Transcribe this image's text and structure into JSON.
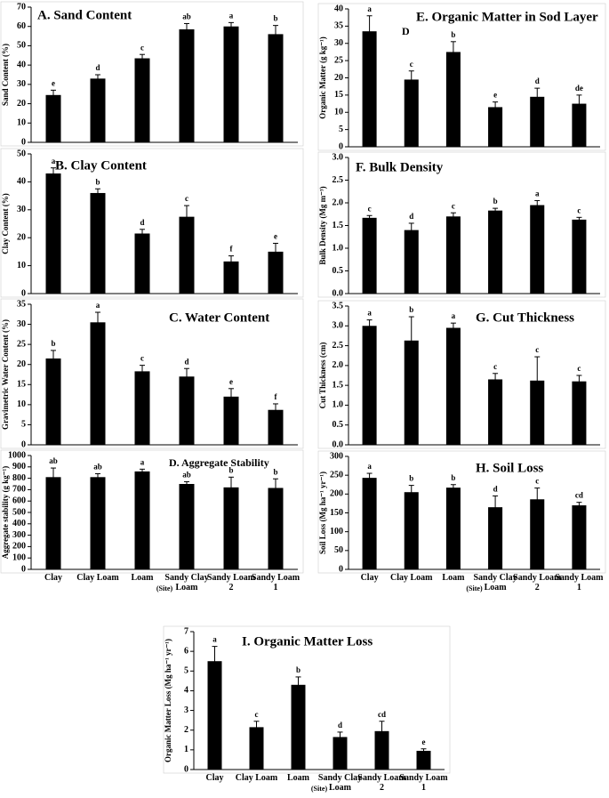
{
  "chart_data": [
    {
      "type": "bar",
      "title": "A.  Sand Content",
      "y_label": "Sand Content (%)",
      "color": "#000000",
      "values": [
        24.5,
        33,
        43.5,
        58.5,
        60,
        56
      ],
      "errors": [
        2.5,
        2,
        2,
        3,
        2,
        4.5
      ],
      "letters": [
        "e",
        "d",
        "c",
        "ab",
        "a",
        "b"
      ],
      "ylim": [
        0,
        70
      ],
      "yticks": [
        0,
        10,
        20,
        30,
        40,
        50,
        60,
        70
      ]
    },
    {
      "type": "bar",
      "title": "B.  Clay Content",
      "y_label": "Clay Content (%)",
      "color": "#000000",
      "values": [
        43,
        36,
        21.5,
        27.5,
        11.5,
        15
      ],
      "errors": [
        2,
        1.5,
        1.5,
        4,
        2,
        3
      ],
      "letters": [
        "a",
        "b",
        "d",
        "c",
        "f",
        "e"
      ],
      "ylim": [
        0,
        50
      ],
      "yticks": [
        0,
        10,
        20,
        30,
        40,
        50
      ]
    },
    {
      "type": "bar",
      "title": "C.  Water Content",
      "y_label": "Gravimetric Water Content (%)",
      "color": "#000000",
      "values": [
        21.5,
        30.5,
        18.3,
        17,
        12,
        8.7
      ],
      "errors": [
        2,
        2.5,
        1.5,
        2,
        2,
        1.5
      ],
      "letters": [
        "b",
        "a",
        "c",
        "d",
        "e",
        "f"
      ],
      "ylim": [
        0,
        35
      ],
      "yticks": [
        0,
        5,
        10,
        15,
        20,
        25,
        30,
        35
      ]
    },
    {
      "type": "bar",
      "title": "D. Aggregate Stability",
      "y_label": "Aggregate stability (g kg⁻¹)",
      "x_label": "(Site)",
      "color": "#000000",
      "categories": [
        "Clay",
        "Clay Loam",
        "Loam",
        "Sandy Clay Loam",
        "Sandy Loam 2",
        "Sandy Loam 1"
      ],
      "values": [
        810,
        810,
        860,
        750,
        720,
        715
      ],
      "errors": [
        80,
        30,
        20,
        20,
        90,
        80
      ],
      "letters": [
        "ab",
        "ab",
        "a",
        "ab",
        "b",
        "b"
      ],
      "ylim": [
        0,
        1000
      ],
      "yticks": [
        0,
        100,
        200,
        300,
        400,
        500,
        600,
        700,
        800,
        900,
        1000
      ]
    },
    {
      "type": "bar",
      "title": "E. Organic Matter in Sod Layer",
      "annotation": "D",
      "y_label": "Organic Matter (g kg⁻¹)",
      "color": "#000000",
      "values": [
        33.5,
        19.5,
        27.5,
        11.5,
        14.5,
        12.5
      ],
      "errors": [
        4.5,
        2.5,
        3,
        1.5,
        2.5,
        2.5
      ],
      "letters": [
        "a",
        "c",
        "b",
        "e",
        "d",
        "de"
      ],
      "ylim": [
        0,
        40
      ],
      "yticks": [
        0,
        5,
        10,
        15,
        20,
        25,
        30,
        35,
        40
      ]
    },
    {
      "type": "bar",
      "title": "F.  Bulk Density",
      "y_label": "Bulk Density (Mg m⁻³)",
      "color": "#000000",
      "values": [
        1.67,
        1.4,
        1.7,
        1.83,
        1.95,
        1.63
      ],
      "errors": [
        0.05,
        0.15,
        0.08,
        0.05,
        0.1,
        0.05
      ],
      "letters": [
        "c",
        "d",
        "c",
        "b",
        "a",
        "c"
      ],
      "ylim": [
        0,
        3
      ],
      "yticks": [
        {
          "value": 0,
          "label": "0.0"
        },
        0.5,
        {
          "value": 1,
          "label": "1.0"
        },
        1.5,
        {
          "value": 2,
          "label": "2.0"
        },
        2.5,
        {
          "value": 3,
          "label": "3.0"
        }
      ]
    },
    {
      "type": "bar",
      "title": "G.  Cut Thickness",
      "y_label": "Cut Thickness (cm)",
      "color": "#000000",
      "values": [
        3.0,
        2.63,
        2.95,
        1.65,
        1.62,
        1.6
      ],
      "errors": [
        0.15,
        0.6,
        0.12,
        0.15,
        0.6,
        0.15
      ],
      "letters": [
        "a",
        "b",
        "a",
        "c",
        "c",
        "c"
      ],
      "ylim": [
        0,
        3.5
      ],
      "yticks": [
        {
          "value": 0,
          "label": "0.0"
        },
        0.5,
        {
          "value": 1,
          "label": "1.0"
        },
        1.5,
        {
          "value": 2,
          "label": "2.0"
        },
        2.5,
        {
          "value": 3,
          "label": "3.0"
        },
        3.5
      ]
    },
    {
      "type": "bar",
      "title": "H.  Soil Loss",
      "y_label": "Soil Loss (Mg ha⁻¹ yr⁻¹)",
      "x_label": "(Site)",
      "color": "#000000",
      "categories": [
        "Clay",
        "Clay Loam",
        "Loam",
        "Sandy Clay Loam",
        "Sandy Loam 2",
        "Sandy Loam 1"
      ],
      "values": [
        243,
        205,
        217,
        165,
        186,
        170
      ],
      "errors": [
        12,
        18,
        8,
        30,
        30,
        8
      ],
      "letters": [
        "a",
        "b",
        "b",
        "d",
        "c",
        "cd"
      ],
      "ylim": [
        0,
        300
      ],
      "yticks": [
        0,
        50,
        100,
        150,
        200,
        250,
        300
      ]
    },
    {
      "type": "bar",
      "title": "I.  Organic Matter Loss",
      "y_label": "Organic Matter Loss (Mg ha⁻¹ yr⁻¹)",
      "x_label": "(Site)",
      "color": "#000000",
      "categories": [
        "Clay",
        "Clay Loam",
        "Loam",
        "Sandy Clay Loam",
        "Sandy Loam 2",
        "Sandy Loam 1"
      ],
      "values": [
        5.5,
        2.15,
        4.3,
        1.65,
        1.95,
        0.95
      ],
      "errors": [
        0.75,
        0.3,
        0.4,
        0.25,
        0.5,
        0.1
      ],
      "letters": [
        "a",
        "c",
        "b",
        "d",
        "cd",
        "e"
      ],
      "ylim": [
        0,
        7
      ],
      "yticks": [
        0,
        1,
        2,
        3,
        4,
        5,
        6,
        7
      ]
    }
  ]
}
